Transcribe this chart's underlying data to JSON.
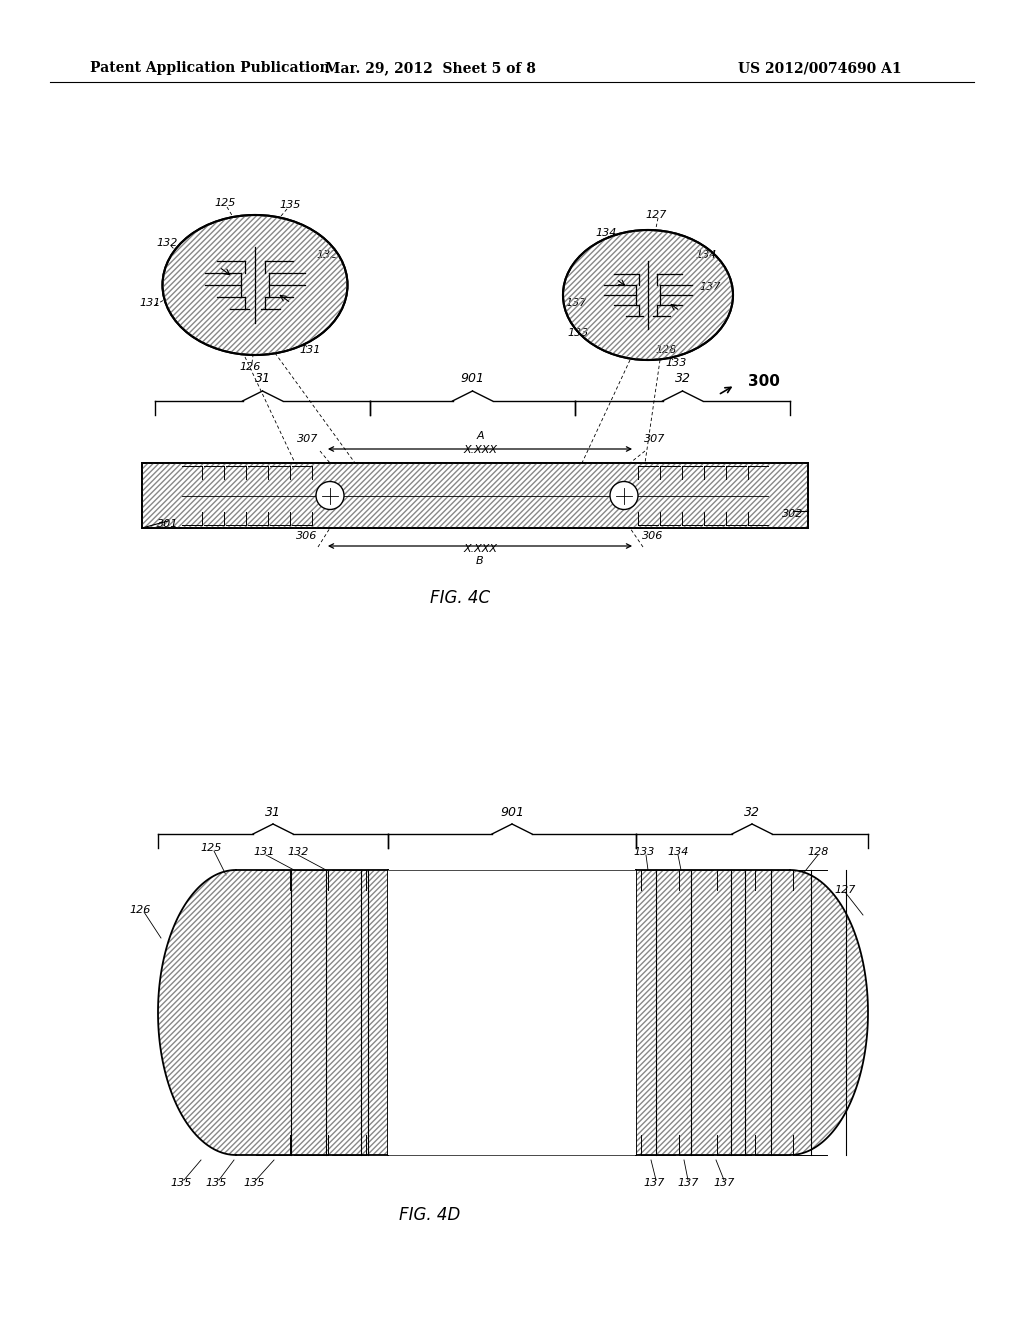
{
  "bg_color": "#ffffff",
  "header_left": "Patent Application Publication",
  "header_mid": "Mar. 29, 2012  Sheet 5 of 8",
  "header_right": "US 2012/0074690 A1",
  "fig4c_label": "FIG. 4C",
  "fig4d_label": "FIG. 4D",
  "line_color": "#000000",
  "text_color": "#000000"
}
